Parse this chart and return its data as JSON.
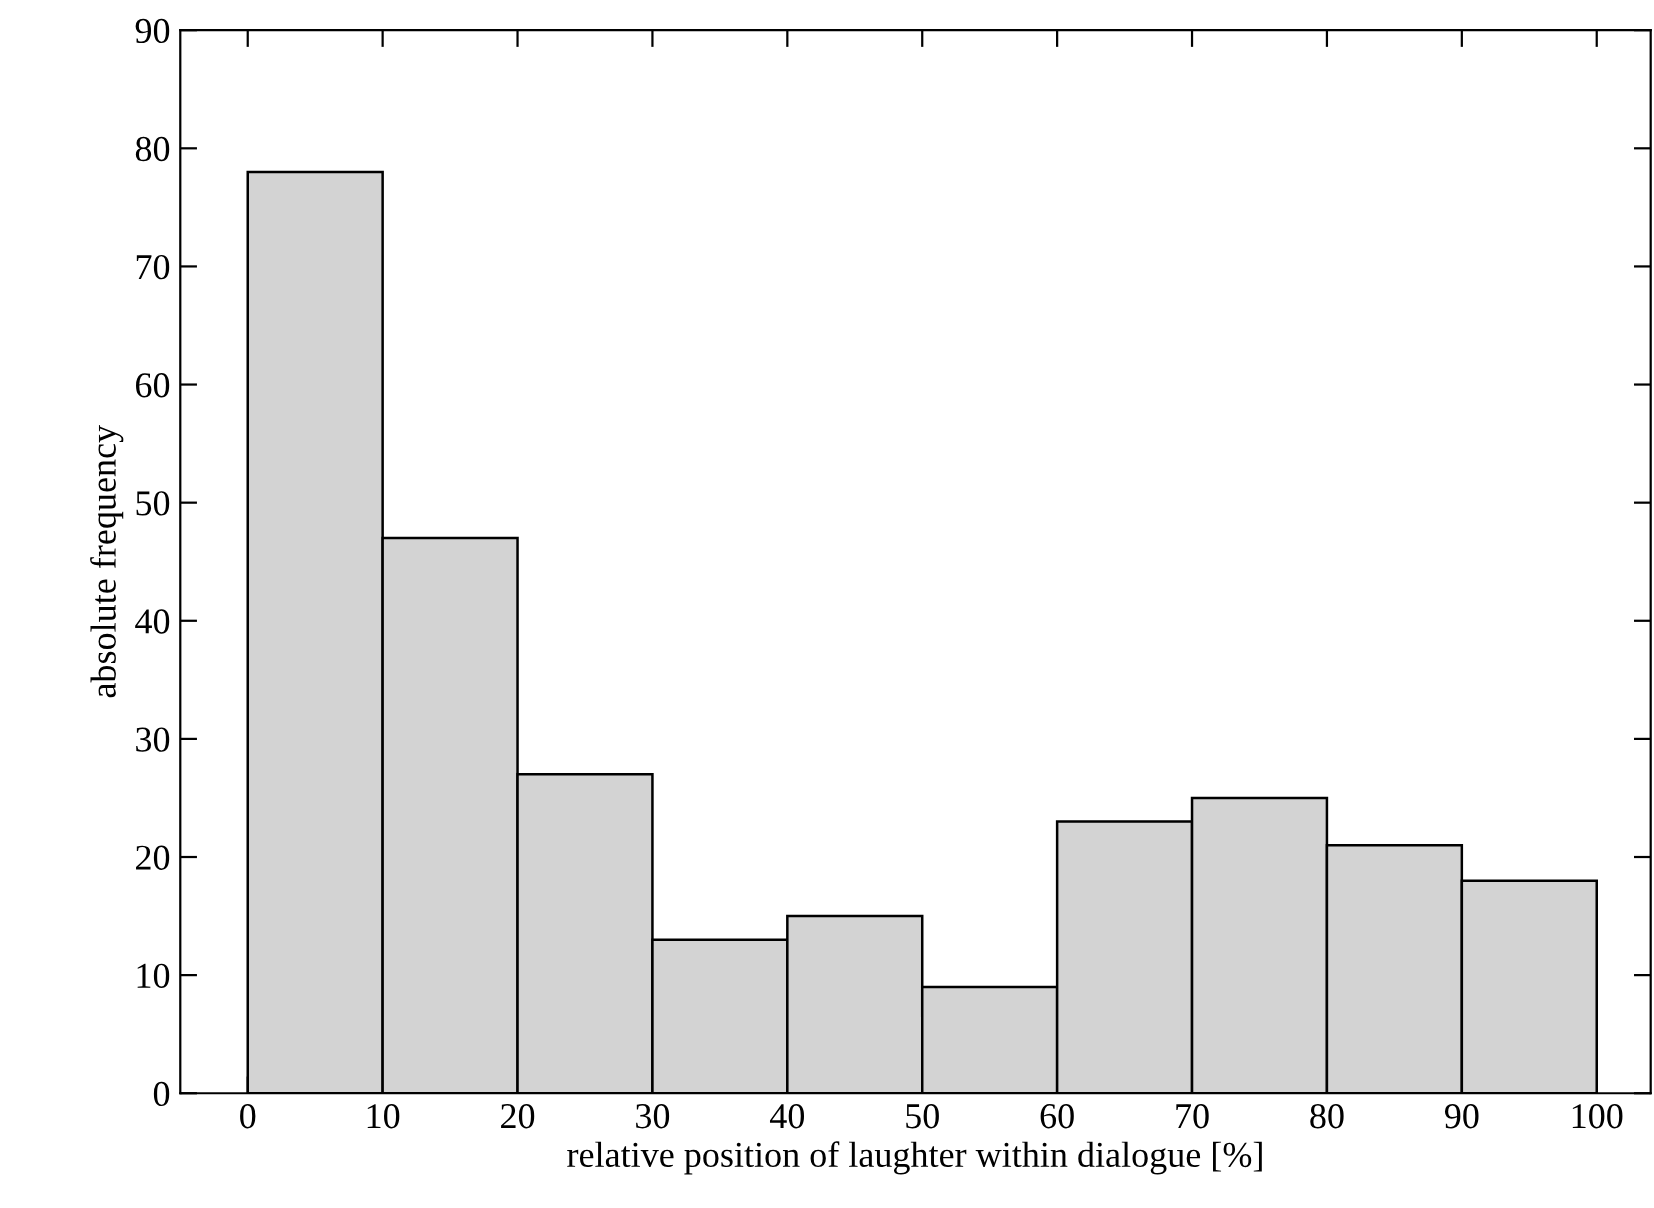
{
  "chart_data": {
    "type": "histogram",
    "xlabel": "relative position of laughter within dialogue [%]",
    "ylabel": "absolute frequency",
    "bins": [
      0,
      10,
      20,
      30,
      40,
      50,
      60,
      70,
      80,
      90,
      100
    ],
    "values": [
      78,
      47,
      27,
      13,
      15,
      9,
      23,
      25,
      21,
      18
    ],
    "color": "#d3d3d3",
    "xlim": [
      -5,
      104
    ],
    "xticks": [
      0,
      10,
      20,
      30,
      40,
      50,
      60,
      70,
      80,
      90,
      100
    ],
    "ylim": [
      0,
      90
    ],
    "yticks": [
      0,
      10,
      20,
      30,
      40,
      50,
      60,
      70,
      80,
      90
    ],
    "grid": false,
    "legend": false
  }
}
